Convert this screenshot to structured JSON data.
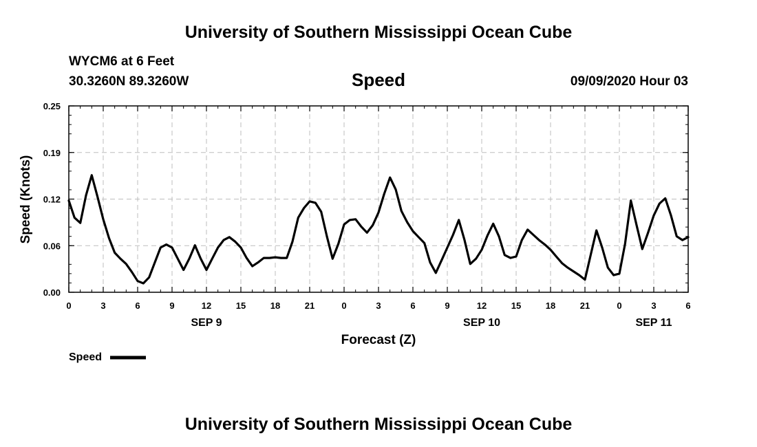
{
  "header": {
    "title": "University of Southern Mississippi Ocean Cube",
    "station": "WYCM6 at 6 Feet",
    "location": "30.3260N 89.3260W",
    "datetime": "09/09/2020 Hour 03"
  },
  "footer": {
    "title": "University of Southern Mississippi Ocean Cube"
  },
  "colors": {
    "line": "#000000",
    "grid": "#bdbdbd"
  },
  "chart_data": {
    "type": "line",
    "title": "Speed",
    "xlabel": "Forecast (Z)",
    "ylabel": "Speed (Knots)",
    "grid": true,
    "ylim": [
      0,
      0.25
    ],
    "xlim": [
      0,
      54
    ],
    "y_ticks": [
      {
        "value": 0,
        "label": "0.00"
      },
      {
        "value": 0.0625,
        "label": "0.06"
      },
      {
        "value": 0.125,
        "label": "0.12"
      },
      {
        "value": 0.1875,
        "label": "0.19"
      },
      {
        "value": 0.25,
        "label": "0.25"
      }
    ],
    "x_ticks": [
      {
        "value": 0,
        "label": "0"
      },
      {
        "value": 3,
        "label": "3"
      },
      {
        "value": 6,
        "label": "6"
      },
      {
        "value": 9,
        "label": "9"
      },
      {
        "value": 12,
        "label": "12"
      },
      {
        "value": 15,
        "label": "15"
      },
      {
        "value": 18,
        "label": "18"
      },
      {
        "value": 21,
        "label": "21"
      },
      {
        "value": 24,
        "label": "0"
      },
      {
        "value": 27,
        "label": "3"
      },
      {
        "value": 30,
        "label": "6"
      },
      {
        "value": 33,
        "label": "9"
      },
      {
        "value": 36,
        "label": "12"
      },
      {
        "value": 39,
        "label": "15"
      },
      {
        "value": 42,
        "label": "18"
      },
      {
        "value": 45,
        "label": "21"
      },
      {
        "value": 48,
        "label": "0"
      },
      {
        "value": 51,
        "label": "3"
      },
      {
        "value": 54,
        "label": "6"
      }
    ],
    "date_labels": [
      {
        "value": 12,
        "label": "SEP 9"
      },
      {
        "value": 36,
        "label": "SEP 10"
      },
      {
        "value": 51,
        "label": "SEP 11"
      }
    ],
    "legend": {
      "label": "Speed",
      "position": "bottom-left"
    },
    "series": [
      {
        "name": "Speed",
        "x": [
          0,
          0.5,
          1,
          1.5,
          2,
          2.5,
          3,
          3.5,
          4,
          4.5,
          5,
          5.5,
          6,
          6.5,
          7,
          7.5,
          8,
          8.5,
          9,
          9.5,
          10,
          10.5,
          11,
          11.5,
          12,
          12.5,
          13,
          13.5,
          14,
          14.5,
          15,
          15.5,
          16,
          16.5,
          17,
          17.5,
          18,
          18.5,
          19,
          19.5,
          20,
          20.5,
          21,
          21.5,
          22,
          22.5,
          23,
          23.5,
          24,
          24.5,
          25,
          25.5,
          26,
          26.5,
          27,
          27.5,
          28,
          28.5,
          29,
          29.5,
          30,
          30.5,
          31,
          31.5,
          32,
          32.5,
          33,
          33.5,
          34,
          34.5,
          35,
          35.5,
          36,
          36.5,
          37,
          37.5,
          38,
          38.5,
          39,
          39.5,
          40,
          40.5,
          41,
          41.5,
          42,
          42.5,
          43,
          43.5,
          44,
          44.5,
          45,
          45.5,
          46,
          46.5,
          47,
          47.5,
          48,
          48.5,
          49,
          49.5,
          50,
          50.5,
          51,
          51.5,
          52,
          52.5,
          53,
          53.5,
          54
        ],
        "values": [
          0.123,
          0.1,
          0.093,
          0.13,
          0.157,
          0.128,
          0.098,
          0.073,
          0.053,
          0.045,
          0.038,
          0.027,
          0.015,
          0.012,
          0.02,
          0.04,
          0.06,
          0.064,
          0.06,
          0.045,
          0.03,
          0.045,
          0.063,
          0.045,
          0.03,
          0.045,
          0.06,
          0.07,
          0.074,
          0.068,
          0.06,
          0.046,
          0.035,
          0.04,
          0.046,
          0.046,
          0.047,
          0.046,
          0.046,
          0.068,
          0.1,
          0.113,
          0.122,
          0.12,
          0.108,
          0.075,
          0.045,
          0.065,
          0.091,
          0.097,
          0.098,
          0.088,
          0.08,
          0.09,
          0.107,
          0.132,
          0.154,
          0.138,
          0.109,
          0.094,
          0.082,
          0.074,
          0.066,
          0.04,
          0.026,
          0.043,
          0.06,
          0.077,
          0.097,
          0.07,
          0.038,
          0.045,
          0.057,
          0.076,
          0.092,
          0.075,
          0.05,
          0.046,
          0.048,
          0.07,
          0.084,
          0.077,
          0.07,
          0.064,
          0.057,
          0.048,
          0.039,
          0.033,
          0.028,
          0.023,
          0.017,
          0.05,
          0.083,
          0.06,
          0.033,
          0.023,
          0.025,
          0.065,
          0.123,
          0.09,
          0.058,
          0.08,
          0.103,
          0.119,
          0.126,
          0.103,
          0.075,
          0.07,
          0.074
        ]
      }
    ]
  }
}
